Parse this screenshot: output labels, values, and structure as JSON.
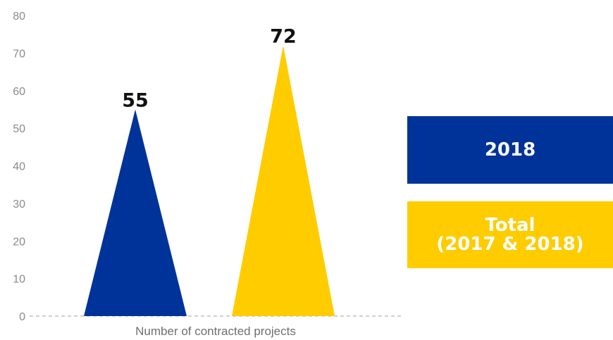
{
  "chart_data": {
    "type": "bar",
    "bar_shape": "triangle",
    "categories": [
      "2018",
      "Total (2017 & 2018)"
    ],
    "values": [
      55,
      72
    ],
    "series": [
      {
        "name": "2018",
        "value": 55,
        "color": "#003399"
      },
      {
        "name": "Total (2017 & 2018)",
        "value": 72,
        "color": "#ffcc00"
      }
    ],
    "xlabel": "Number of contracted projects",
    "ylim": [
      0,
      80
    ],
    "yticks": [
      0,
      10,
      20,
      30,
      40,
      50,
      60,
      70,
      80
    ],
    "grid": false,
    "baseline_style": "dashed",
    "legend_placement": "right"
  },
  "legend": {
    "item_2018": {
      "line1": "2018",
      "color": "#003399"
    },
    "item_total": {
      "line1": "Total",
      "line2": "(2017 & 2018)",
      "color": "#ffcc00"
    }
  }
}
